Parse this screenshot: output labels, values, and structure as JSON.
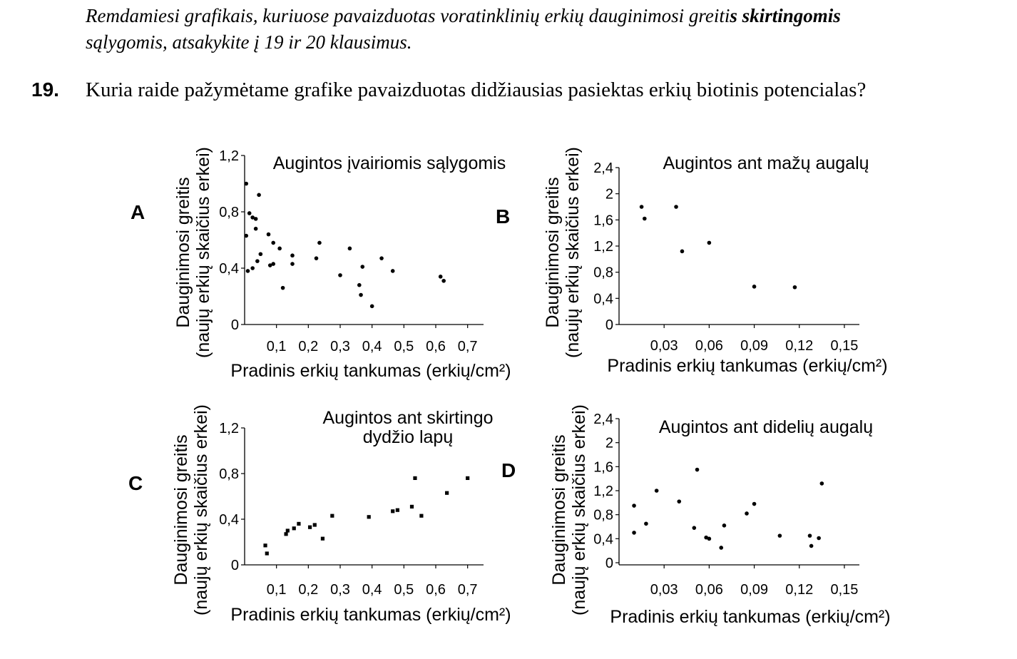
{
  "intro": {
    "part1": "Remdamiesi grafikais, kuriuose pavaizduotas voratinklinių erkių dauginimosi greiti",
    "part2": "s skirtingomis",
    "part3": "sąlygomis, atsakykite į 19 ir 20 klausimus."
  },
  "question": {
    "number": "19.",
    "text": "Kuria raide pažymėtame grafike pavaizduotas didžiausias pasiektas erkių biotinis potencialas?"
  },
  "chart_data": [
    {
      "id": "A",
      "letter": "A",
      "type": "scatter",
      "title": [
        "Augintos įvairiomis sąlygomis"
      ],
      "xlabel": "Pradinis erkių tankumas (erkių/cm²)",
      "ylabel": [
        "Dauginimosi greitis",
        "(naujų erkių skaičius erkei)"
      ],
      "xlim": [
        0,
        0.75
      ],
      "ylim": [
        0,
        1.2
      ],
      "xticks": [
        0.1,
        0.2,
        0.3,
        0.4,
        0.5,
        0.6,
        0.7
      ],
      "xtick_labels": [
        "0,1",
        "0,2",
        "0,3",
        "0,4",
        "0,5",
        "0,6",
        "0,7"
      ],
      "yticks": [
        0,
        0.4,
        0.8,
        1.2
      ],
      "ytick_labels": [
        "0",
        "0,4",
        "0,8",
        "1,2"
      ],
      "points": [
        [
          0.005,
          1.0
        ],
        [
          0.005,
          0.63
        ],
        [
          0.01,
          0.38
        ],
        [
          0.015,
          0.79
        ],
        [
          0.025,
          0.76
        ],
        [
          0.025,
          0.4
        ],
        [
          0.035,
          0.75
        ],
        [
          0.035,
          0.68
        ],
        [
          0.04,
          0.45
        ],
        [
          0.045,
          0.92
        ],
        [
          0.05,
          0.5
        ],
        [
          0.075,
          0.64
        ],
        [
          0.08,
          0.42
        ],
        [
          0.09,
          0.58
        ],
        [
          0.09,
          0.43
        ],
        [
          0.11,
          0.54
        ],
        [
          0.12,
          0.26
        ],
        [
          0.15,
          0.43
        ],
        [
          0.15,
          0.49
        ],
        [
          0.225,
          0.47
        ],
        [
          0.235,
          0.58
        ],
        [
          0.3,
          0.35
        ],
        [
          0.33,
          0.54
        ],
        [
          0.36,
          0.28
        ],
        [
          0.365,
          0.21
        ],
        [
          0.37,
          0.41
        ],
        [
          0.4,
          0.13
        ],
        [
          0.43,
          0.47
        ],
        [
          0.465,
          0.38
        ],
        [
          0.615,
          0.34
        ],
        [
          0.625,
          0.31
        ]
      ]
    },
    {
      "id": "B",
      "letter": "B",
      "type": "scatter",
      "title": [
        "Augintos ant mažų augalų"
      ],
      "xlabel": "Pradinis erkių tankumas (erkių/cm²)",
      "ylabel": [
        "Dauginimosi greitis",
        "(naujų erkių skaičius erkei)"
      ],
      "xlim": [
        0,
        0.16
      ],
      "ylim": [
        0,
        2.4
      ],
      "xticks": [
        0.03,
        0.06,
        0.09,
        0.12,
        0.15
      ],
      "xtick_labels": [
        "0,03",
        "0,06",
        "0,09",
        "0,12",
        "0,15"
      ],
      "yticks": [
        0,
        0.4,
        0.8,
        1.2,
        1.6,
        2,
        2.4
      ],
      "ytick_labels": [
        "0",
        "0,4",
        "0,8",
        "1,2",
        "1,6",
        "2",
        "2,4"
      ],
      "points": [
        [
          0.015,
          1.8
        ],
        [
          0.017,
          1.62
        ],
        [
          0.038,
          1.8
        ],
        [
          0.042,
          1.12
        ],
        [
          0.06,
          1.25
        ],
        [
          0.09,
          0.58
        ],
        [
          0.117,
          0.57
        ]
      ]
    },
    {
      "id": "C",
      "letter": "C",
      "type": "scatter",
      "title": [
        "Augintos ant skirtingo",
        "dydžio lapų"
      ],
      "xlabel": "Pradinis erkių tankumas (erkių/cm²)",
      "ylabel": [
        "Dauginimosi greitis",
        "(naujų erkių skaičius erkei)"
      ],
      "xlim": [
        0,
        0.75
      ],
      "ylim": [
        0,
        1.2
      ],
      "xticks": [
        0.1,
        0.2,
        0.3,
        0.4,
        0.5,
        0.6,
        0.7
      ],
      "xtick_labels": [
        "0,1",
        "0,2",
        "0,3",
        "0,4",
        "0,5",
        "0,6",
        "0,7"
      ],
      "yticks": [
        0,
        0.4,
        0.8,
        1.2
      ],
      "ytick_labels": [
        "0",
        "0,4",
        "0,8",
        "1,2"
      ],
      "points": [
        [
          0.065,
          0.17
        ],
        [
          0.07,
          0.1
        ],
        [
          0.13,
          0.27
        ],
        [
          0.135,
          0.3
        ],
        [
          0.155,
          0.32
        ],
        [
          0.17,
          0.36
        ],
        [
          0.205,
          0.33
        ],
        [
          0.22,
          0.35
        ],
        [
          0.245,
          0.23
        ],
        [
          0.275,
          0.43
        ],
        [
          0.39,
          0.42
        ],
        [
          0.465,
          0.47
        ],
        [
          0.48,
          0.48
        ],
        [
          0.525,
          0.51
        ],
        [
          0.535,
          0.76
        ],
        [
          0.555,
          0.43
        ],
        [
          0.635,
          0.63
        ],
        [
          0.7,
          0.76
        ]
      ]
    },
    {
      "id": "D",
      "letter": "D",
      "type": "scatter",
      "title": [
        "Augintos ant didelių augalų"
      ],
      "xlabel": "Pradinis erkių tankumas (erkių/cm²)",
      "ylabel": [
        "Dauginimosi greitis",
        "(naujų erkių skaičius erkei)"
      ],
      "xlim": [
        0,
        0.16
      ],
      "ylim": [
        0,
        2.4
      ],
      "xticks": [
        0.03,
        0.06,
        0.09,
        0.12,
        0.15
      ],
      "xtick_labels": [
        "0,03",
        "0,06",
        "0,09",
        "0,12",
        "0,15"
      ],
      "yticks": [
        0,
        0.4,
        0.8,
        1.2,
        1.6,
        2,
        2.4
      ],
      "ytick_labels": [
        "0",
        "0,4",
        "0,8",
        "1,2",
        "1,6",
        "2",
        "2,4"
      ],
      "points": [
        [
          0.01,
          0.5
        ],
        [
          0.01,
          0.95
        ],
        [
          0.018,
          0.65
        ],
        [
          0.025,
          1.2
        ],
        [
          0.04,
          1.02
        ],
        [
          0.05,
          0.58
        ],
        [
          0.052,
          1.55
        ],
        [
          0.058,
          0.42
        ],
        [
          0.06,
          0.4
        ],
        [
          0.068,
          0.25
        ],
        [
          0.07,
          0.62
        ],
        [
          0.085,
          0.82
        ],
        [
          0.09,
          0.98
        ],
        [
          0.107,
          0.45
        ],
        [
          0.127,
          0.45
        ],
        [
          0.128,
          0.28
        ],
        [
          0.133,
          0.41
        ],
        [
          0.135,
          1.32
        ]
      ]
    }
  ]
}
